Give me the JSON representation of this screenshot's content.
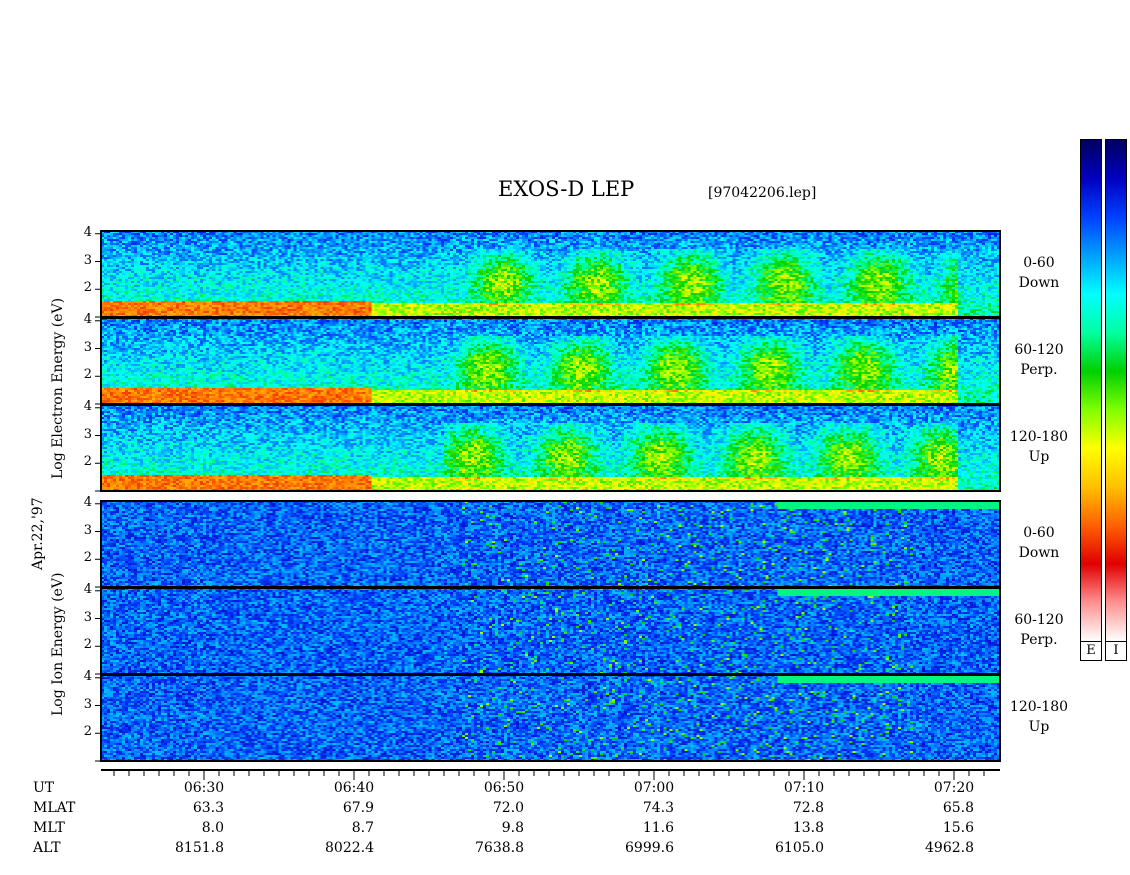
{
  "chart_data": {
    "type": "heatmap",
    "title": "EXOS-D LEP",
    "file_id": "[97042206.lep]",
    "date_label": "Apr.22,'97",
    "electron_axis_label": "Log Electron Energy (eV)",
    "ion_axis_label": "Log Ion Energy (eV)",
    "y_ticks": [
      "4",
      "3",
      "2"
    ],
    "ylim": [
      1,
      4.1
    ],
    "panels": [
      {
        "species": "Electron",
        "pitch_range": "0-60",
        "direction": "Down"
      },
      {
        "species": "Electron",
        "pitch_range": "60-120",
        "direction": "Perp."
      },
      {
        "species": "Electron",
        "pitch_range": "120-180",
        "direction": "Up"
      },
      {
        "species": "Ion",
        "pitch_range": "0-60",
        "direction": "Down"
      },
      {
        "species": "Ion",
        "pitch_range": "60-120",
        "direction": "Perp."
      },
      {
        "species": "Ion",
        "pitch_range": "120-180",
        "direction": "Up"
      }
    ],
    "x_axis": {
      "row_labels": [
        "UT",
        "MLAT",
        "MLT",
        "ALT"
      ],
      "ticks": [
        {
          "UT": "06:30",
          "MLAT": "63.3",
          "MLT": "8.0",
          "ALT": "8151.8"
        },
        {
          "UT": "06:40",
          "MLAT": "67.9",
          "MLT": "8.7",
          "ALT": "8022.4"
        },
        {
          "UT": "06:50",
          "MLAT": "72.0",
          "MLT": "9.8",
          "ALT": "7638.8"
        },
        {
          "UT": "07:00",
          "MLAT": "74.3",
          "MLT": "11.6",
          "ALT": "6999.6"
        },
        {
          "UT": "07:10",
          "MLAT": "72.8",
          "MLT": "13.8",
          "ALT": "6105.0"
        },
        {
          "UT": "07:20",
          "MLAT": "65.8",
          "MLT": "15.6",
          "ALT": "4962.8"
        }
      ]
    },
    "colorbars": [
      {
        "label": "E"
      },
      {
        "label": "I"
      }
    ],
    "colorscale": [
      "#ffffff",
      "#ff9090",
      "#e00000",
      "#ff6000",
      "#ffc000",
      "#ffff00",
      "#80ff00",
      "#00d000",
      "#00ffa0",
      "#00ffff",
      "#00a0ff",
      "#0040ff",
      "#0000c0",
      "#000060"
    ]
  }
}
